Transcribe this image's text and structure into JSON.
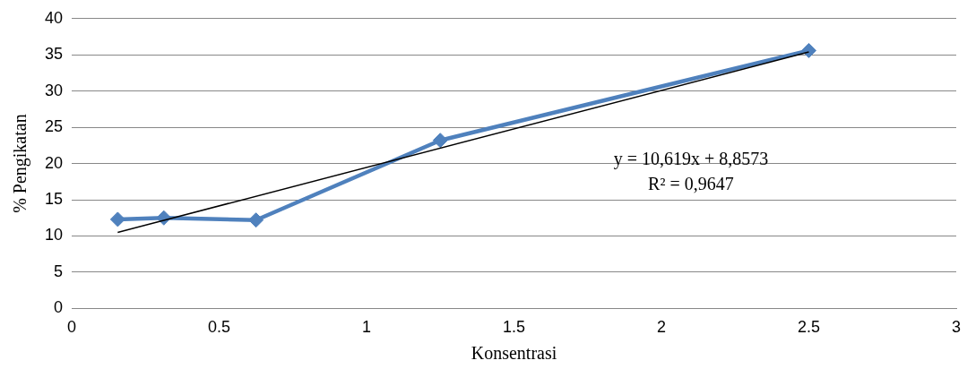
{
  "chart_data": {
    "type": "line",
    "xlabel": "Konsentrasi",
    "ylabel": "% Pengikatan",
    "xlim": [
      0,
      3
    ],
    "xticks": [
      0,
      0.5,
      1,
      1.5,
      2,
      2.5,
      3
    ],
    "ylim": [
      0,
      40
    ],
    "yticks": [
      0,
      5,
      10,
      15,
      20,
      25,
      30,
      35,
      40
    ],
    "grid": "y",
    "legend": false,
    "marker": "diamond",
    "line_style": "solid",
    "series": [
      {
        "color": "#4f81bd",
        "x": [
          0.156,
          0.3125,
          0.625,
          1.25,
          2.5
        ],
        "values": [
          12.3,
          12.5,
          12.2,
          23.2,
          35.6
        ]
      },
      {
        "color": "#000000",
        "marker": "none",
        "x": [
          0.156,
          2.5
        ],
        "values": [
          10.5,
          35.4
        ]
      }
    ],
    "annotations": [
      "y = 10,619x + 8,8573",
      "R² = 0,9647"
    ]
  }
}
